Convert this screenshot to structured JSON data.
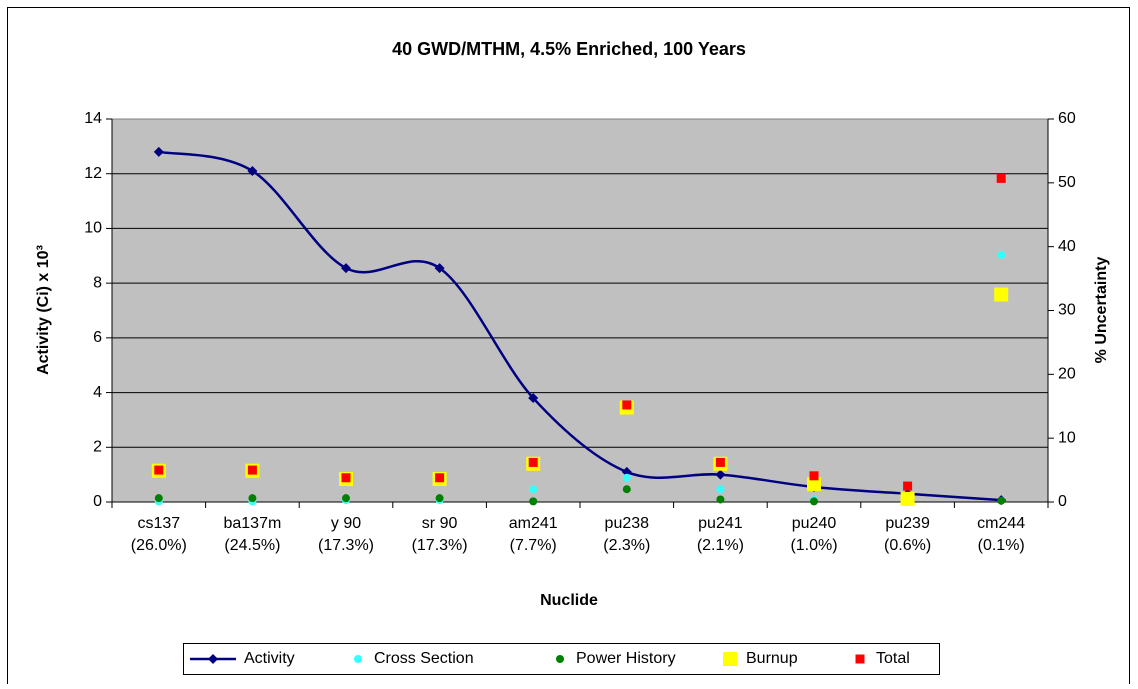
{
  "chart_data": {
    "type": "line",
    "title": "40 GWD/MTHM, 4.5% Enriched, 100 Years",
    "x_label": "Nuclide",
    "y_label": "Activity (Ci) x 10³",
    "y2_label": "% Uncertainty",
    "categories": [
      [
        "cs137",
        "(26.0%)"
      ],
      [
        "ba137m",
        "(24.5%)"
      ],
      [
        "y 90",
        "(17.3%)"
      ],
      [
        "sr 90",
        "(17.3%)"
      ],
      [
        "am241",
        "(7.7%)"
      ],
      [
        "pu238",
        "(2.3%)"
      ],
      [
        "pu241",
        "(2.1%)"
      ],
      [
        "pu240",
        "(1.0%)"
      ],
      [
        "pu239",
        "(0.6%)"
      ],
      [
        "cm244",
        "(0.1%)"
      ]
    ],
    "ylim": [
      0,
      14
    ],
    "yticks": [
      0,
      2,
      4,
      6,
      8,
      10,
      12,
      14
    ],
    "y2lim": [
      0,
      60
    ],
    "y2ticks": [
      0,
      10,
      20,
      30,
      40,
      50,
      60
    ],
    "grid": true,
    "legend": "bottom",
    "smooth": true,
    "series": [
      {
        "name": "Activity",
        "color": "#000080",
        "marker": "diamond",
        "line": true,
        "values": [
          12.8,
          12.1,
          8.55,
          8.55,
          3.8,
          1.1,
          1.0,
          0.55,
          0.3,
          0.07
        ]
      },
      {
        "name": "Cross Section",
        "color": "#33ffff",
        "marker": "circle",
        "axis": "y2",
        "values": [
          0.1,
          0.1,
          0.3,
          0.3,
          2.0,
          3.8,
          2.0,
          0.3,
          0.3,
          38.7
        ]
      },
      {
        "name": "Power History",
        "color": "#008000",
        "marker": "circle",
        "axis": "y2",
        "values": [
          0.6,
          0.6,
          0.6,
          0.6,
          0.1,
          2.0,
          0.4,
          0.1,
          0.1,
          0.2
        ]
      },
      {
        "name": "Burnup",
        "color": "#ffff00",
        "marker": "bigsquare",
        "axis": "y2",
        "values": [
          4.9,
          4.9,
          3.6,
          3.6,
          6.0,
          14.8,
          6.0,
          2.8,
          0.5,
          32.5
        ]
      },
      {
        "name": "Total",
        "color": "#ff0000",
        "marker": "square",
        "axis": "y2",
        "values": [
          5.0,
          5.0,
          3.8,
          3.8,
          6.2,
          15.2,
          6.2,
          4.1,
          2.5,
          50.7
        ]
      }
    ]
  }
}
